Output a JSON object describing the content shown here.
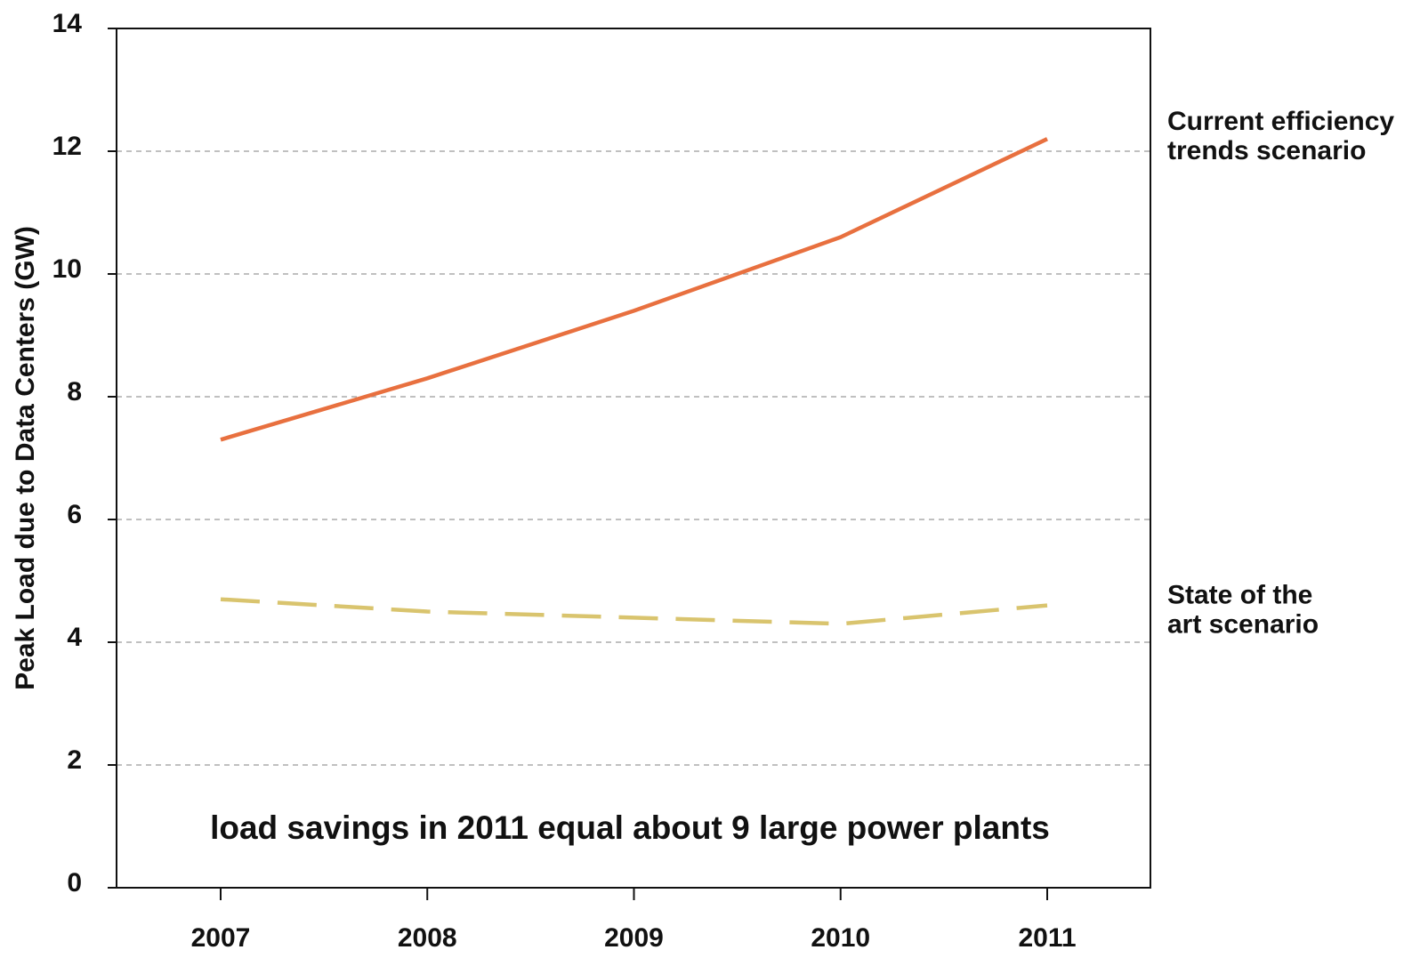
{
  "chart_data": {
    "type": "line",
    "title": "",
    "xlabel": "",
    "ylabel": "Peak Load due to Data Centers (GW)",
    "x": [
      "2007",
      "2008",
      "2009",
      "2010",
      "2011"
    ],
    "ylim": [
      0,
      14
    ],
    "yticks": [
      "0",
      "2",
      "4",
      "6",
      "8",
      "10",
      "12",
      "14"
    ],
    "grid": true,
    "series": [
      {
        "name": "Current efficiency trends scenario",
        "label_lines": [
          "Current efficiency",
          "trends scenario"
        ],
        "values": [
          7.3,
          8.3,
          9.4,
          10.6,
          12.2
        ],
        "color": "#e8703f",
        "style": "solid"
      },
      {
        "name": "State of the art scenario",
        "label_lines": [
          "State of the",
          "art scenario"
        ],
        "values": [
          4.7,
          4.5,
          4.4,
          4.3,
          4.6
        ],
        "color": "#d9c46e",
        "style": "dashed"
      }
    ],
    "annotation": "load savings in 2011 equal about 9 large power plants"
  }
}
